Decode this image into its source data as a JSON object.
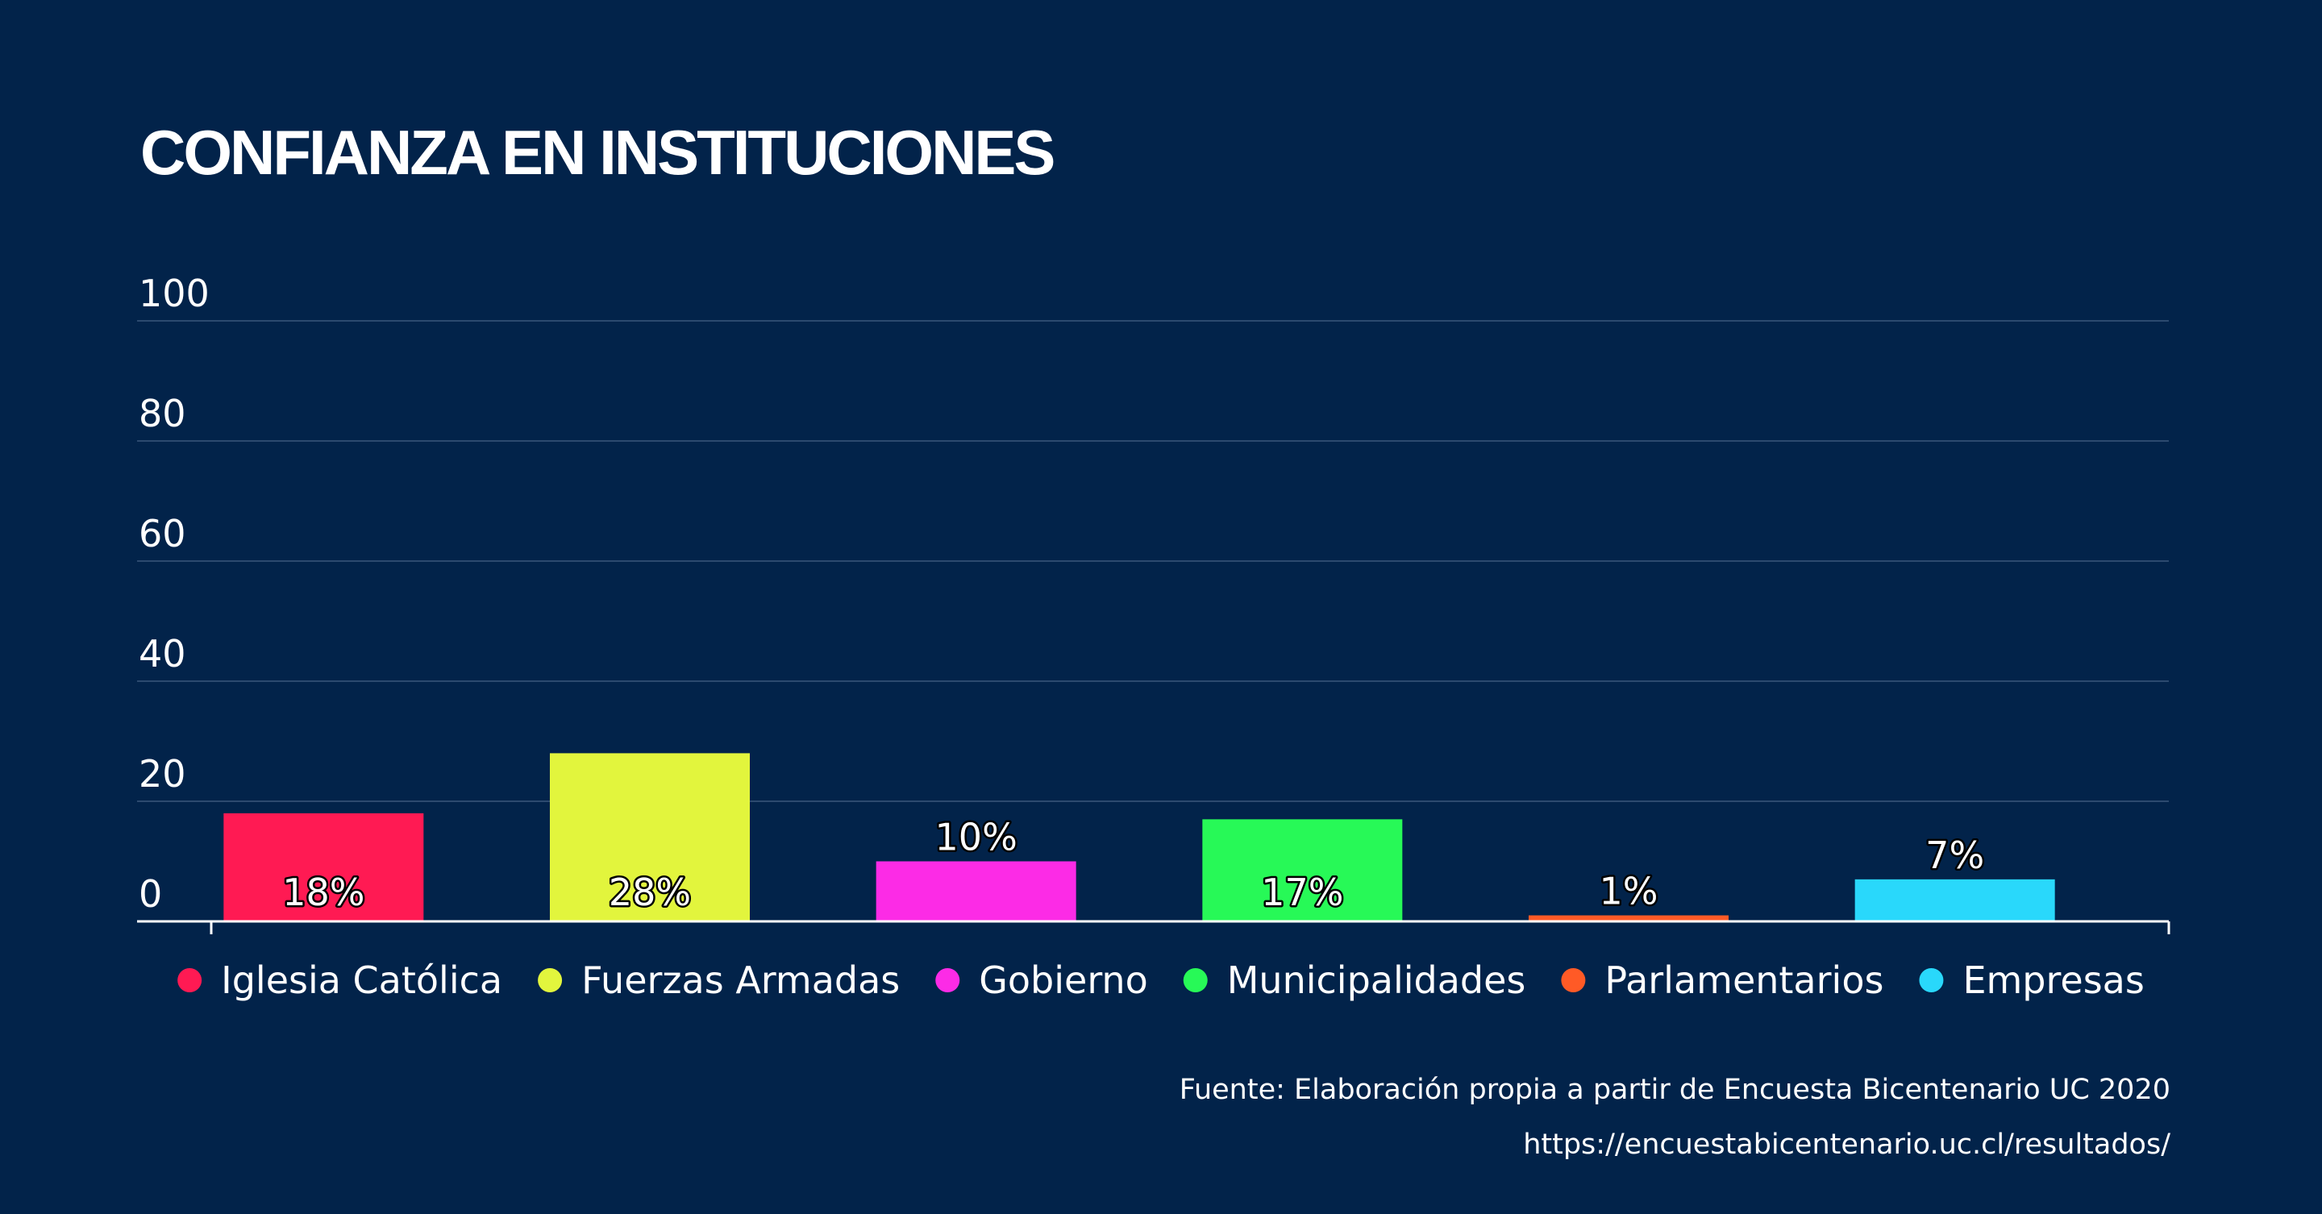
{
  "chart_data": {
    "type": "bar",
    "title": "CONFIANZA EN INSTITUCIONES",
    "categories": [
      "Iglesia Católica",
      "Fuerzas Armadas",
      "Gobierno",
      "Municipalidades",
      "Parlamentarios",
      "Empresas"
    ],
    "values": [
      18,
      28,
      10,
      17,
      1,
      7
    ],
    "data_labels": [
      "18%",
      "28%",
      "10%",
      "17%",
      "1%",
      "7%"
    ],
    "colors": [
      "#ff1a53",
      "#e2f53d",
      "#fc2be6",
      "#27f957",
      "#ff5a26",
      "#29d8fb"
    ],
    "ylim": [
      0,
      100
    ],
    "yticks": [
      0,
      20,
      40,
      60,
      80,
      100
    ],
    "xlabel": "",
    "ylabel": "",
    "grid": true,
    "legend_placement": "bottom-center"
  },
  "source": {
    "line1": "Fuente: Elaboración propia a partir de Encuesta Bicentenario UC 2020",
    "line2": "https://encuestabicentenario.uc.cl/resultados/"
  },
  "colors": {
    "background": "#02234a",
    "gridline": "#2c4a6f",
    "axis": "#ffffff"
  }
}
